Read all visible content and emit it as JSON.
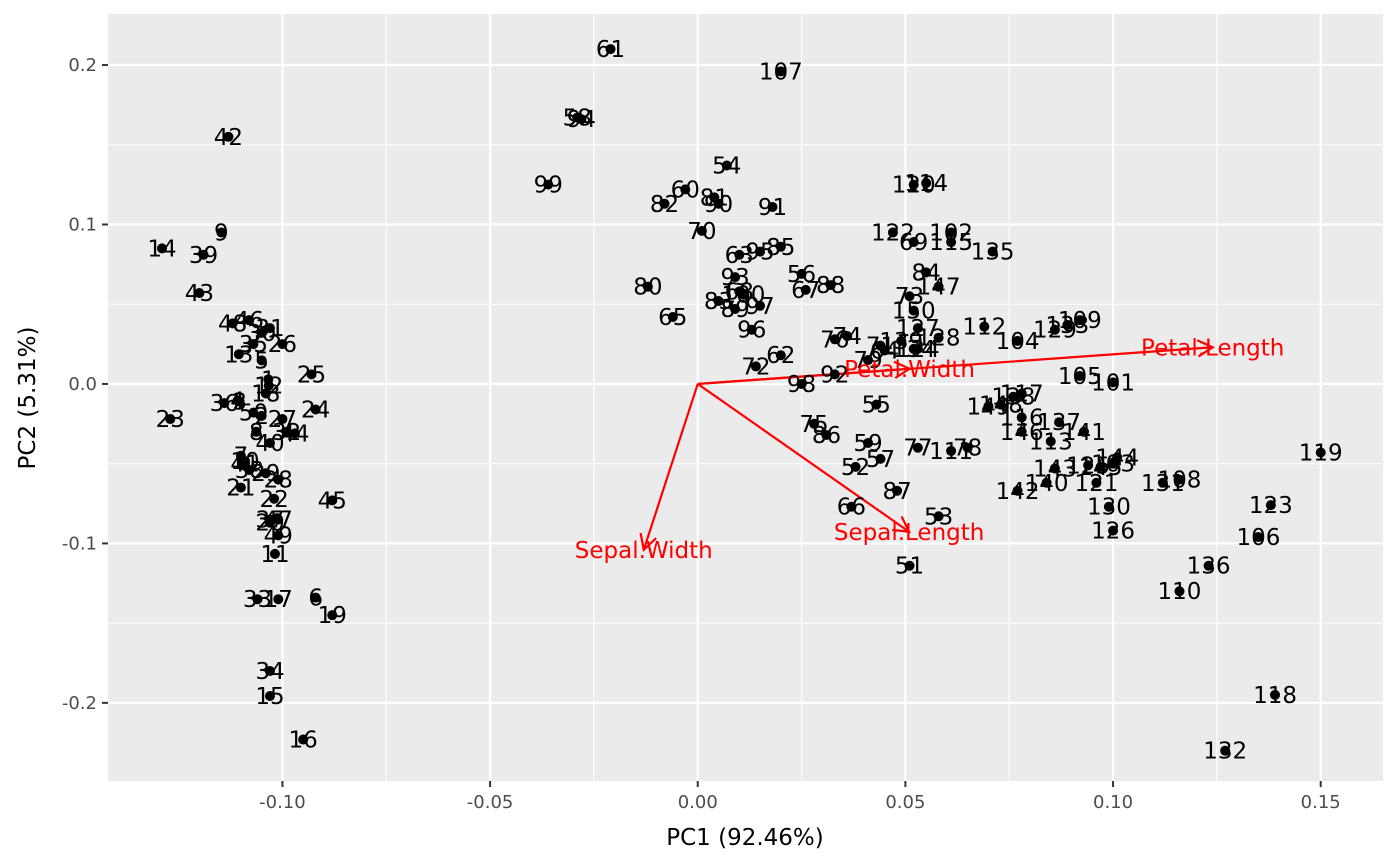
{
  "chart_data": {
    "type": "scatter",
    "xlabel": "PC1 (92.46%)",
    "ylabel": "PC2 (5.31%)",
    "xlim": [
      -0.142,
      0.165
    ],
    "ylim": [
      -0.249,
      0.232
    ],
    "x_ticks": [
      -0.1,
      -0.05,
      0.0,
      0.05,
      0.1,
      0.15
    ],
    "x_tick_labels": [
      "-0.10",
      "-0.05",
      "0.00",
      "0.05",
      "0.10",
      "0.15"
    ],
    "y_ticks": [
      -0.2,
      -0.1,
      0.0,
      0.1,
      0.2
    ],
    "y_tick_labels": [
      "-0.2",
      "-0.1",
      "0.0",
      "0.1",
      "0.2"
    ],
    "grid": true,
    "background": "#ebebeb",
    "grid_color": "#ffffff",
    "point_color": "#000000",
    "loading_color": "#ff0000",
    "points": [
      {
        "label": "1",
        "x": -0.1034,
        "y": 0.0029
      },
      {
        "label": "2",
        "x": -0.105,
        "y": -0.02
      },
      {
        "label": "3",
        "x": -0.1103,
        "y": -0.011
      },
      {
        "label": "4",
        "x": -0.1108,
        "y": -0.0104
      },
      {
        "label": "5",
        "x": -0.105,
        "y": 0.0148
      },
      {
        "label": "6",
        "x": -0.092,
        "y": -0.134
      },
      {
        "label": "7",
        "x": -0.11,
        "y": -0.045
      },
      {
        "label": "8",
        "x": -0.1063,
        "y": -0.03
      },
      {
        "label": "9",
        "x": -0.1147,
        "y": 0.095
      },
      {
        "label": "10",
        "x": -0.109,
        "y": -0.0484
      },
      {
        "label": "11",
        "x": -0.1018,
        "y": -0.1066
      },
      {
        "label": "12",
        "x": -0.1033,
        "y": -0.001
      },
      {
        "label": "13",
        "x": -0.1105,
        "y": 0.0186
      },
      {
        "label": "14",
        "x": -0.129,
        "y": 0.085
      },
      {
        "label": "15",
        "x": -0.103,
        "y": -0.1957
      },
      {
        "label": "16",
        "x": -0.095,
        "y": -0.223
      },
      {
        "label": "17",
        "x": -0.101,
        "y": -0.135
      },
      {
        "label": "18",
        "x": -0.104,
        "y": -0.006
      },
      {
        "label": "19",
        "x": -0.088,
        "y": -0.145
      },
      {
        "label": "20",
        "x": -0.103,
        "y": -0.087
      },
      {
        "label": "21",
        "x": -0.11,
        "y": -0.065
      },
      {
        "label": "22",
        "x": -0.102,
        "y": -0.072
      },
      {
        "label": "23",
        "x": -0.127,
        "y": -0.022
      },
      {
        "label": "24",
        "x": -0.092,
        "y": -0.016
      },
      {
        "label": "25",
        "x": -0.093,
        "y": 0.006
      },
      {
        "label": "26",
        "x": -0.1,
        "y": 0.025
      },
      {
        "label": "27",
        "x": -0.1,
        "y": -0.022
      },
      {
        "label": "28",
        "x": -0.101,
        "y": -0.06
      },
      {
        "label": "29",
        "x": -0.104,
        "y": -0.056
      },
      {
        "label": "30",
        "x": -0.105,
        "y": 0.032
      },
      {
        "label": "31",
        "x": -0.103,
        "y": 0.035
      },
      {
        "label": "32",
        "x": -0.099,
        "y": -0.03
      },
      {
        "label": "33",
        "x": -0.106,
        "y": -0.135
      },
      {
        "label": "34",
        "x": -0.103,
        "y": -0.18
      },
      {
        "label": "35",
        "x": -0.107,
        "y": 0.025
      },
      {
        "label": "36",
        "x": -0.114,
        "y": -0.012
      },
      {
        "label": "37",
        "x": -0.103,
        "y": -0.085
      },
      {
        "label": "38",
        "x": -0.108,
        "y": -0.054
      },
      {
        "label": "39",
        "x": -0.119,
        "y": 0.081
      },
      {
        "label": "40",
        "x": -0.103,
        "y": -0.037
      },
      {
        "label": "41",
        "x": -0.109,
        "y": -0.05
      },
      {
        "label": "42",
        "x": -0.113,
        "y": 0.155
      },
      {
        "label": "43",
        "x": -0.12,
        "y": 0.057
      },
      {
        "label": "44",
        "x": -0.097,
        "y": -0.031
      },
      {
        "label": "45",
        "x": -0.088,
        "y": -0.073
      },
      {
        "label": "46",
        "x": -0.108,
        "y": 0.04
      },
      {
        "label": "47",
        "x": -0.101,
        "y": -0.085
      },
      {
        "label": "48",
        "x": -0.112,
        "y": 0.038
      },
      {
        "label": "49",
        "x": -0.101,
        "y": -0.095
      },
      {
        "label": "50",
        "x": -0.107,
        "y": -0.018
      },
      {
        "label": "51",
        "x": 0.051,
        "y": -0.114
      },
      {
        "label": "52",
        "x": 0.038,
        "y": -0.052
      },
      {
        "label": "53",
        "x": 0.058,
        "y": -0.083
      },
      {
        "label": "54",
        "x": 0.007,
        "y": 0.137
      },
      {
        "label": "55",
        "x": 0.043,
        "y": -0.013
      },
      {
        "label": "56",
        "x": 0.025,
        "y": 0.069
      },
      {
        "label": "57",
        "x": 0.044,
        "y": -0.047
      },
      {
        "label": "58",
        "x": -0.029,
        "y": 0.167
      },
      {
        "label": "59",
        "x": 0.041,
        "y": -0.037
      },
      {
        "label": "60",
        "x": -0.003,
        "y": 0.122
      },
      {
        "label": "61",
        "x": -0.021,
        "y": 0.21
      },
      {
        "label": "62",
        "x": 0.02,
        "y": 0.018
      },
      {
        "label": "63",
        "x": 0.01,
        "y": 0.081
      },
      {
        "label": "64",
        "x": 0.045,
        "y": 0.021
      },
      {
        "label": "65",
        "x": -0.006,
        "y": 0.042
      },
      {
        "label": "66",
        "x": 0.037,
        "y": -0.077
      },
      {
        "label": "67",
        "x": 0.026,
        "y": 0.059
      },
      {
        "label": "68",
        "x": 0.01,
        "y": 0.058
      },
      {
        "label": "69",
        "x": 0.052,
        "y": 0.089
      },
      {
        "label": "70",
        "x": 0.001,
        "y": 0.096
      },
      {
        "label": "71",
        "x": 0.044,
        "y": 0.024
      },
      {
        "label": "72",
        "x": 0.014,
        "y": 0.011
      },
      {
        "label": "73",
        "x": 0.051,
        "y": 0.055
      },
      {
        "label": "74",
        "x": 0.036,
        "y": 0.03
      },
      {
        "label": "75",
        "x": 0.028,
        "y": -0.025
      },
      {
        "label": "76",
        "x": 0.033,
        "y": 0.028
      },
      {
        "label": "77",
        "x": 0.053,
        "y": -0.04
      },
      {
        "label": "78",
        "x": 0.065,
        "y": -0.04
      },
      {
        "label": "79",
        "x": 0.041,
        "y": 0.015
      },
      {
        "label": "80",
        "x": -0.012,
        "y": 0.061
      },
      {
        "label": "81",
        "x": 0.004,
        "y": 0.117
      },
      {
        "label": "82",
        "x": -0.008,
        "y": 0.113
      },
      {
        "label": "83",
        "x": 0.005,
        "y": 0.052
      },
      {
        "label": "84",
        "x": 0.055,
        "y": 0.07
      },
      {
        "label": "85",
        "x": 0.02,
        "y": 0.086
      },
      {
        "label": "86",
        "x": 0.031,
        "y": -0.032
      },
      {
        "label": "87",
        "x": 0.048,
        "y": -0.067
      },
      {
        "label": "88",
        "x": 0.032,
        "y": 0.062
      },
      {
        "label": "89",
        "x": 0.009,
        "y": 0.047
      },
      {
        "label": "90",
        "x": 0.005,
        "y": 0.113
      },
      {
        "label": "91",
        "x": 0.018,
        "y": 0.111
      },
      {
        "label": "92",
        "x": 0.033,
        "y": 0.006
      },
      {
        "label": "93",
        "x": 0.009,
        "y": 0.067
      },
      {
        "label": "94",
        "x": -0.028,
        "y": 0.166
      },
      {
        "label": "95",
        "x": 0.015,
        "y": 0.083
      },
      {
        "label": "96",
        "x": 0.013,
        "y": 0.034
      },
      {
        "label": "97",
        "x": 0.015,
        "y": 0.049
      },
      {
        "label": "98",
        "x": 0.025,
        "y": 0.0
      },
      {
        "label": "99",
        "x": -0.036,
        "y": 0.125
      },
      {
        "label": "100",
        "x": 0.011,
        "y": 0.056
      },
      {
        "label": "101",
        "x": 0.1,
        "y": 0.001
      },
      {
        "label": "102",
        "x": 0.061,
        "y": 0.095
      },
      {
        "label": "103",
        "x": 0.1,
        "y": -0.05
      },
      {
        "label": "104",
        "x": 0.077,
        "y": 0.027
      },
      {
        "label": "105",
        "x": 0.092,
        "y": 0.005
      },
      {
        "label": "106",
        "x": 0.135,
        "y": -0.096
      },
      {
        "label": "107",
        "x": 0.02,
        "y": 0.196
      },
      {
        "label": "108",
        "x": 0.116,
        "y": -0.06
      },
      {
        "label": "109",
        "x": 0.092,
        "y": 0.04
      },
      {
        "label": "110",
        "x": 0.116,
        "y": -0.13
      },
      {
        "label": "111",
        "x": 0.061,
        "y": -0.042
      },
      {
        "label": "112",
        "x": 0.069,
        "y": 0.036
      },
      {
        "label": "113",
        "x": 0.085,
        "y": -0.036
      },
      {
        "label": "114",
        "x": 0.055,
        "y": 0.126
      },
      {
        "label": "115",
        "x": 0.061,
        "y": 0.089
      },
      {
        "label": "116",
        "x": 0.078,
        "y": -0.021
      },
      {
        "label": "117",
        "x": 0.078,
        "y": -0.006
      },
      {
        "label": "118",
        "x": 0.139,
        "y": -0.195
      },
      {
        "label": "119",
        "x": 0.15,
        "y": -0.043
      },
      {
        "label": "120",
        "x": 0.052,
        "y": 0.125
      },
      {
        "label": "121",
        "x": 0.096,
        "y": -0.062
      },
      {
        "label": "122",
        "x": 0.047,
        "y": 0.095
      },
      {
        "label": "123",
        "x": 0.138,
        "y": -0.076
      },
      {
        "label": "124",
        "x": 0.053,
        "y": 0.022
      },
      {
        "label": "125",
        "x": 0.094,
        "y": -0.051
      },
      {
        "label": "126",
        "x": 0.1,
        "y": -0.092
      },
      {
        "label": "127",
        "x": 0.053,
        "y": 0.035
      },
      {
        "label": "128",
        "x": 0.058,
        "y": 0.029
      },
      {
        "label": "129",
        "x": 0.086,
        "y": 0.034
      },
      {
        "label": "130",
        "x": 0.099,
        "y": -0.077
      },
      {
        "label": "131",
        "x": 0.112,
        "y": -0.062
      },
      {
        "label": "132",
        "x": 0.127,
        "y": -0.23
      },
      {
        "label": "133",
        "x": 0.089,
        "y": 0.037
      },
      {
        "label": "134",
        "x": 0.052,
        "y": 0.022
      },
      {
        "label": "135",
        "x": 0.071,
        "y": 0.083
      },
      {
        "label": "136",
        "x": 0.123,
        "y": -0.114
      },
      {
        "label": "137",
        "x": 0.087,
        "y": -0.024
      },
      {
        "label": "138",
        "x": 0.076,
        "y": -0.008
      },
      {
        "label": "139",
        "x": 0.049,
        "y": 0.027
      },
      {
        "label": "140",
        "x": 0.084,
        "y": -0.062
      },
      {
        "label": "141",
        "x": 0.093,
        "y": -0.03
      },
      {
        "label": "142",
        "x": 0.077,
        "y": -0.067
      },
      {
        "label": "143",
        "x": 0.086,
        "y": -0.053
      },
      {
        "label": "144",
        "x": 0.101,
        "y": -0.046
      },
      {
        "label": "145",
        "x": 0.097,
        "y": -0.052
      },
      {
        "label": "146",
        "x": 0.078,
        "y": -0.03
      },
      {
        "label": "147",
        "x": 0.058,
        "y": 0.061
      },
      {
        "label": "148",
        "x": 0.073,
        "y": -0.013
      },
      {
        "label": "149",
        "x": 0.07,
        "y": -0.014
      },
      {
        "label": "150",
        "x": 0.052,
        "y": 0.046
      }
    ],
    "loadings": [
      {
        "label": "Sepal.Length",
        "x": 0.0509,
        "y": -0.0927
      },
      {
        "label": "Sepal.Width",
        "x": -0.013,
        "y": -0.104
      },
      {
        "label": "Petal.Length",
        "x": 0.124,
        "y": 0.023
      },
      {
        "label": "Petal.Width",
        "x": 0.051,
        "y": 0.0095
      }
    ]
  }
}
